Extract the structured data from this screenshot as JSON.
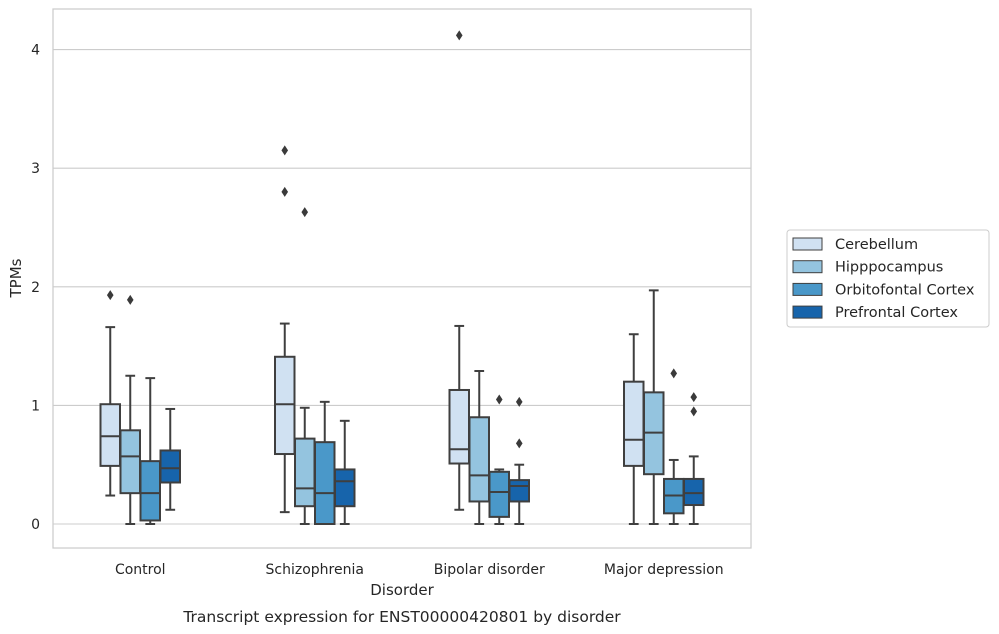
{
  "chart_data": {
    "type": "box",
    "xlabel": "Disorder",
    "ylabel": "TPMs",
    "caption": "Transcript expression for ENST00000420801 by disorder",
    "categories": [
      "Control",
      "Schizophrenia",
      "Bipolar disorder",
      "Major depression"
    ],
    "ylim": [
      -0.2,
      4.35
    ],
    "yticks": [
      0,
      1,
      2,
      3,
      4
    ],
    "grid": "horizontal",
    "legend_position": "right",
    "palette": [
      "#d0e1f2",
      "#94c4df",
      "#4a98c9",
      "#1764ab"
    ],
    "series": [
      {
        "name": "Cerebellum",
        "boxes": [
          {
            "whislo": 0.24,
            "q1": 0.49,
            "med": 0.74,
            "q3": 1.01,
            "whishi": 1.66,
            "fliers": [
              1.93
            ]
          },
          {
            "whislo": 0.1,
            "q1": 0.59,
            "med": 1.01,
            "q3": 1.41,
            "whishi": 1.69,
            "fliers": [
              2.8,
              3.15
            ]
          },
          {
            "whislo": 0.12,
            "q1": 0.51,
            "med": 0.63,
            "q3": 1.13,
            "whishi": 1.67,
            "fliers": [
              4.12
            ]
          },
          {
            "whislo": 0.0,
            "q1": 0.49,
            "med": 0.71,
            "q3": 1.2,
            "whishi": 1.6,
            "fliers": []
          }
        ]
      },
      {
        "name": "Hipppocampus",
        "boxes": [
          {
            "whislo": 0.0,
            "q1": 0.26,
            "med": 0.57,
            "q3": 0.79,
            "whishi": 1.25,
            "fliers": [
              1.89
            ]
          },
          {
            "whislo": 0.0,
            "q1": 0.15,
            "med": 0.3,
            "q3": 0.72,
            "whishi": 0.98,
            "fliers": [
              2.63
            ]
          },
          {
            "whislo": 0.0,
            "q1": 0.19,
            "med": 0.41,
            "q3": 0.9,
            "whishi": 1.29,
            "fliers": []
          },
          {
            "whislo": 0.0,
            "q1": 0.42,
            "med": 0.77,
            "q3": 1.11,
            "whishi": 1.97,
            "fliers": []
          }
        ]
      },
      {
        "name": "Orbitofontal Cortex",
        "boxes": [
          {
            "whislo": 0.0,
            "q1": 0.03,
            "med": 0.26,
            "q3": 0.53,
            "whishi": 1.23,
            "fliers": []
          },
          {
            "whislo": 0.0,
            "q1": 0.0,
            "med": 0.26,
            "q3": 0.69,
            "whishi": 1.03,
            "fliers": []
          },
          {
            "whislo": 0.0,
            "q1": 0.06,
            "med": 0.27,
            "q3": 0.44,
            "whishi": 0.46,
            "fliers": [
              1.05
            ]
          },
          {
            "whislo": 0.0,
            "q1": 0.09,
            "med": 0.24,
            "q3": 0.38,
            "whishi": 0.54,
            "fliers": [
              1.27
            ]
          }
        ]
      },
      {
        "name": "Prefrontal Cortex",
        "boxes": [
          {
            "whislo": 0.12,
            "q1": 0.35,
            "med": 0.47,
            "q3": 0.62,
            "whishi": 0.97,
            "fliers": []
          },
          {
            "whislo": 0.0,
            "q1": 0.15,
            "med": 0.36,
            "q3": 0.46,
            "whishi": 0.87,
            "fliers": []
          },
          {
            "whislo": 0.0,
            "q1": 0.19,
            "med": 0.32,
            "q3": 0.37,
            "whishi": 0.5,
            "fliers": [
              0.68,
              1.03
            ]
          },
          {
            "whislo": 0.0,
            "q1": 0.16,
            "med": 0.26,
            "q3": 0.38,
            "whishi": 0.57,
            "fliers": [
              0.95,
              1.07
            ]
          }
        ]
      }
    ]
  }
}
